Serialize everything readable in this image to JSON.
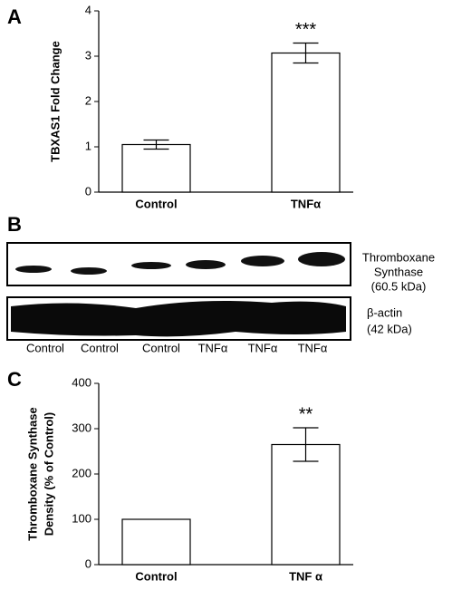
{
  "chart_data": [
    {
      "type": "bar",
      "panel": "A",
      "ylabel": [
        "TBXAS1 Fold Change"
      ],
      "categories": [
        "Control",
        "TNFα"
      ],
      "values": [
        1.05,
        3.07
      ],
      "errors": [
        0.1,
        0.22
      ],
      "annotation": "***",
      "color": "#ffffff",
      "ylim": [
        0,
        4
      ],
      "yticks": [
        0,
        1,
        2,
        3,
        4
      ]
    },
    {
      "type": "bar",
      "panel": "C",
      "ylabel": [
        "Thromboxane Synthase",
        "Density (% of Control)"
      ],
      "categories": [
        "Control",
        "TNF α"
      ],
      "values": [
        100,
        265
      ],
      "errors": [
        null,
        37
      ],
      "annotation": "**",
      "color": "#ffffff",
      "ylim": [
        0,
        400
      ],
      "yticks": [
        0,
        100,
        200,
        300,
        400
      ]
    }
  ],
  "blot": {
    "panel": "B",
    "lanes": [
      "Control",
      "Control",
      "Control",
      "TNFα",
      "TNFα",
      "TNFα"
    ],
    "protein_labels": [
      [
        "Thromboxane",
        "Synthase",
        "(60.5 kDa)"
      ],
      [
        "β-actin",
        "(42 kDa)"
      ]
    ]
  }
}
